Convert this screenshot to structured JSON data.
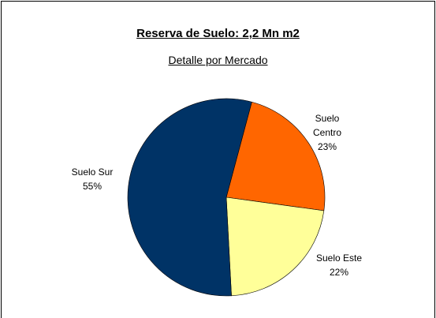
{
  "chart_data": {
    "type": "pie",
    "title": "Reserva de Suelo: 2,2 Mn m2",
    "subtitle": "Detalle por Mercado",
    "categories": [
      "Suelo Centro",
      "Suelo Este",
      "Suelo Sur"
    ],
    "values": [
      23,
      22,
      55
    ],
    "value_labels": [
      "23%",
      "22%",
      "55%"
    ],
    "colors": [
      "#ff6600",
      "#ffff99",
      "#003366"
    ]
  }
}
